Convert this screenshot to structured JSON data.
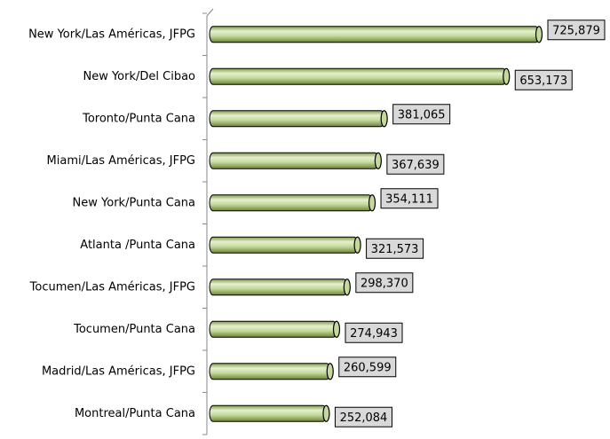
{
  "chart_data": {
    "type": "bar",
    "orientation": "horizontal",
    "categories": [
      "New York/Las Américas, JFPG",
      "New York/Del Cibao",
      "Toronto/Punta Cana",
      "Miami/Las Américas, JFPG",
      "New York/Punta Cana",
      "Atlanta /Punta Cana",
      "Tocumen/Las Américas, JFPG",
      "Tocumen/Punta Cana",
      "Madrid/Las Américas, JFPG",
      "Montreal/Punta Cana"
    ],
    "values": [
      725879,
      653173,
      381065,
      367639,
      354111,
      321573,
      298370,
      274943,
      260599,
      252084
    ],
    "value_labels": [
      "725,879",
      "653,173",
      "381,065",
      "367,639",
      "354,111",
      "321,573",
      "298,370",
      "274,943",
      "260,599",
      "252,084"
    ],
    "color": "#c4d99b"
  }
}
